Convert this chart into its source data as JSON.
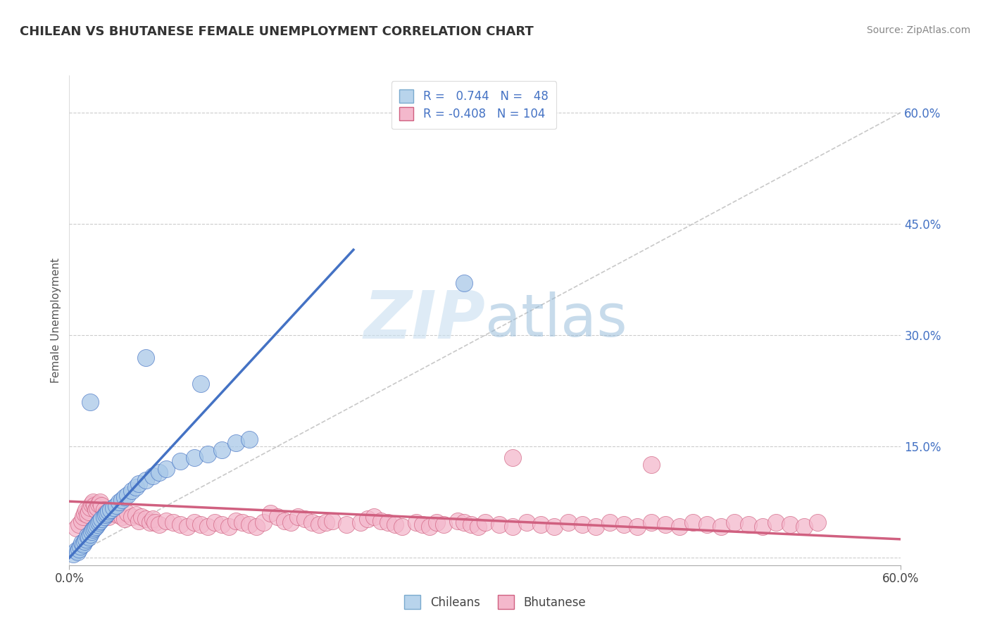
{
  "title": "CHILEAN VS BHUTANESE FEMALE UNEMPLOYMENT CORRELATION CHART",
  "source": "Source: ZipAtlas.com",
  "ylabel": "Female Unemployment",
  "ytick_positions": [
    0.0,
    0.15,
    0.3,
    0.45,
    0.6
  ],
  "ytick_labels": [
    "",
    "15.0%",
    "30.0%",
    "45.0%",
    "60.0%"
  ],
  "xlim": [
    0.0,
    0.6
  ],
  "ylim": [
    -0.01,
    0.65
  ],
  "chilean_color": "#a8c8e8",
  "chilean_edge": "#4472c4",
  "bhutanese_color": "#f4b8cc",
  "bhutanese_edge": "#d06080",
  "blue_line_color": "#4472c4",
  "pink_line_color": "#d06080",
  "diag_line_color": "#bbbbbb",
  "watermark_color": "#d0e8f8",
  "background_color": "#ffffff",
  "grid_color": "#cccccc",
  "blue_line_x0": 0.0,
  "blue_line_y0": 0.0,
  "blue_line_x1": 0.205,
  "blue_line_y1": 0.415,
  "pink_line_x0": 0.0,
  "pink_line_y0": 0.076,
  "pink_line_x1": 0.6,
  "pink_line_y1": 0.025,
  "chilean_pts": [
    [
      0.003,
      0.005
    ],
    [
      0.005,
      0.01
    ],
    [
      0.006,
      0.008
    ],
    [
      0.007,
      0.012
    ],
    [
      0.008,
      0.015
    ],
    [
      0.009,
      0.02
    ],
    [
      0.01,
      0.018
    ],
    [
      0.011,
      0.022
    ],
    [
      0.012,
      0.025
    ],
    [
      0.013,
      0.03
    ],
    [
      0.014,
      0.028
    ],
    [
      0.015,
      0.032
    ],
    [
      0.016,
      0.035
    ],
    [
      0.017,
      0.038
    ],
    [
      0.018,
      0.04
    ],
    [
      0.019,
      0.042
    ],
    [
      0.02,
      0.045
    ],
    [
      0.021,
      0.048
    ],
    [
      0.022,
      0.05
    ],
    [
      0.023,
      0.052
    ],
    [
      0.025,
      0.055
    ],
    [
      0.026,
      0.058
    ],
    [
      0.027,
      0.06
    ],
    [
      0.028,
      0.063
    ],
    [
      0.03,
      0.065
    ],
    [
      0.032,
      0.068
    ],
    [
      0.034,
      0.07
    ],
    [
      0.036,
      0.075
    ],
    [
      0.038,
      0.078
    ],
    [
      0.04,
      0.082
    ],
    [
      0.042,
      0.085
    ],
    [
      0.045,
      0.09
    ],
    [
      0.048,
      0.095
    ],
    [
      0.05,
      0.1
    ],
    [
      0.055,
      0.105
    ],
    [
      0.06,
      0.11
    ],
    [
      0.065,
      0.115
    ],
    [
      0.07,
      0.12
    ],
    [
      0.08,
      0.13
    ],
    [
      0.09,
      0.135
    ],
    [
      0.1,
      0.14
    ],
    [
      0.11,
      0.145
    ],
    [
      0.12,
      0.155
    ],
    [
      0.13,
      0.16
    ],
    [
      0.015,
      0.21
    ],
    [
      0.055,
      0.27
    ],
    [
      0.095,
      0.235
    ],
    [
      0.285,
      0.37
    ]
  ],
  "bhutanese_pts": [
    [
      0.005,
      0.04
    ],
    [
      0.007,
      0.045
    ],
    [
      0.009,
      0.05
    ],
    [
      0.01,
      0.055
    ],
    [
      0.011,
      0.06
    ],
    [
      0.012,
      0.065
    ],
    [
      0.013,
      0.058
    ],
    [
      0.014,
      0.062
    ],
    [
      0.015,
      0.068
    ],
    [
      0.016,
      0.072
    ],
    [
      0.017,
      0.075
    ],
    [
      0.018,
      0.07
    ],
    [
      0.019,
      0.065
    ],
    [
      0.02,
      0.068
    ],
    [
      0.021,
      0.072
    ],
    [
      0.022,
      0.075
    ],
    [
      0.023,
      0.07
    ],
    [
      0.025,
      0.065
    ],
    [
      0.026,
      0.06
    ],
    [
      0.027,
      0.058
    ],
    [
      0.028,
      0.055
    ],
    [
      0.03,
      0.06
    ],
    [
      0.032,
      0.062
    ],
    [
      0.034,
      0.065
    ],
    [
      0.035,
      0.058
    ],
    [
      0.038,
      0.055
    ],
    [
      0.04,
      0.052
    ],
    [
      0.042,
      0.06
    ],
    [
      0.045,
      0.055
    ],
    [
      0.048,
      0.058
    ],
    [
      0.05,
      0.05
    ],
    [
      0.052,
      0.055
    ],
    [
      0.055,
      0.052
    ],
    [
      0.058,
      0.048
    ],
    [
      0.06,
      0.052
    ],
    [
      0.062,
      0.048
    ],
    [
      0.065,
      0.045
    ],
    [
      0.07,
      0.05
    ],
    [
      0.075,
      0.048
    ],
    [
      0.08,
      0.045
    ],
    [
      0.085,
      0.042
    ],
    [
      0.09,
      0.048
    ],
    [
      0.095,
      0.045
    ],
    [
      0.1,
      0.042
    ],
    [
      0.105,
      0.048
    ],
    [
      0.11,
      0.045
    ],
    [
      0.115,
      0.042
    ],
    [
      0.12,
      0.05
    ],
    [
      0.125,
      0.048
    ],
    [
      0.13,
      0.045
    ],
    [
      0.135,
      0.042
    ],
    [
      0.14,
      0.048
    ],
    [
      0.145,
      0.06
    ],
    [
      0.15,
      0.055
    ],
    [
      0.155,
      0.05
    ],
    [
      0.16,
      0.048
    ],
    [
      0.165,
      0.055
    ],
    [
      0.17,
      0.052
    ],
    [
      0.175,
      0.048
    ],
    [
      0.18,
      0.045
    ],
    [
      0.185,
      0.048
    ],
    [
      0.19,
      0.05
    ],
    [
      0.2,
      0.045
    ],
    [
      0.21,
      0.048
    ],
    [
      0.215,
      0.052
    ],
    [
      0.22,
      0.055
    ],
    [
      0.225,
      0.05
    ],
    [
      0.23,
      0.048
    ],
    [
      0.235,
      0.045
    ],
    [
      0.24,
      0.042
    ],
    [
      0.25,
      0.048
    ],
    [
      0.255,
      0.045
    ],
    [
      0.26,
      0.042
    ],
    [
      0.265,
      0.048
    ],
    [
      0.27,
      0.045
    ],
    [
      0.28,
      0.05
    ],
    [
      0.285,
      0.048
    ],
    [
      0.29,
      0.045
    ],
    [
      0.295,
      0.042
    ],
    [
      0.3,
      0.048
    ],
    [
      0.31,
      0.045
    ],
    [
      0.32,
      0.042
    ],
    [
      0.33,
      0.048
    ],
    [
      0.34,
      0.045
    ],
    [
      0.35,
      0.042
    ],
    [
      0.36,
      0.048
    ],
    [
      0.37,
      0.045
    ],
    [
      0.38,
      0.042
    ],
    [
      0.39,
      0.048
    ],
    [
      0.4,
      0.045
    ],
    [
      0.41,
      0.042
    ],
    [
      0.42,
      0.048
    ],
    [
      0.43,
      0.045
    ],
    [
      0.44,
      0.042
    ],
    [
      0.45,
      0.048
    ],
    [
      0.46,
      0.045
    ],
    [
      0.47,
      0.042
    ],
    [
      0.48,
      0.048
    ],
    [
      0.49,
      0.045
    ],
    [
      0.5,
      0.042
    ],
    [
      0.51,
      0.048
    ],
    [
      0.52,
      0.045
    ],
    [
      0.53,
      0.042
    ],
    [
      0.54,
      0.048
    ],
    [
      0.32,
      0.135
    ],
    [
      0.42,
      0.125
    ]
  ]
}
